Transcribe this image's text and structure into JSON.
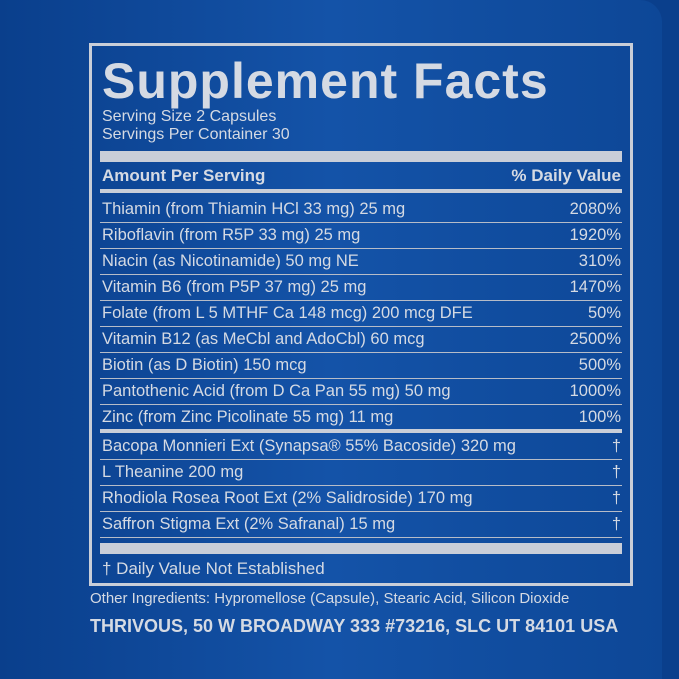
{
  "label": {
    "title": "Supplement Facts",
    "serving_size": "Serving Size 2 Capsules",
    "servings_per_container": "Servings Per Container 30",
    "header": {
      "amount": "Amount Per Serving",
      "daily_value": "% Daily Value"
    },
    "rows": [
      {
        "name": "Thiamin (from Thiamin HCl 33 mg) 25 mg",
        "daily_value": "2080%"
      },
      {
        "name": "Riboflavin (from R5P 33 mg) 25 mg",
        "daily_value": "1920%"
      },
      {
        "name": "Niacin (as Nicotinamide) 50 mg NE",
        "daily_value": "310%"
      },
      {
        "name": "Vitamin B6 (from P5P 37 mg) 25 mg",
        "daily_value": "1470%"
      },
      {
        "name": "Folate (from L 5 MTHF Ca 148 mcg) 200 mcg DFE",
        "daily_value": "50%"
      },
      {
        "name": "Vitamin B12 (as MeCbl and AdoCbl) 60 mcg",
        "daily_value": "2500%"
      },
      {
        "name": "Biotin (as D Biotin) 150 mcg",
        "daily_value": "500%"
      },
      {
        "name": "Pantothenic Acid (from D Ca Pan 55 mg) 50 mg",
        "daily_value": "1000%"
      },
      {
        "name": "Zinc (from Zinc Picolinate 55 mg) 11 mg",
        "daily_value": "100%"
      }
    ],
    "other_rows": [
      {
        "name": "Bacopa Monnieri Ext (Synapsa® 55% Bacoside) 320 mg",
        "daily_value": "†"
      },
      {
        "name": "L Theanine 200 mg",
        "daily_value": "†"
      },
      {
        "name": "Rhodiola Rosea Root Ext (2% Salidroside) 170 mg",
        "daily_value": "†"
      },
      {
        "name": "Saffron Stigma Ext (2% Safranal) 15 mg",
        "daily_value": "†"
      }
    ],
    "footnote": "† Daily Value Not Established",
    "other_ingredients": "Other Ingredients: Hypromellose (Capsule), Stearic Acid, Silicon Dioxide",
    "address": "THRIVOUS, 50 W BROADWAY 333 #73216, SLC UT 84101 USA"
  }
}
